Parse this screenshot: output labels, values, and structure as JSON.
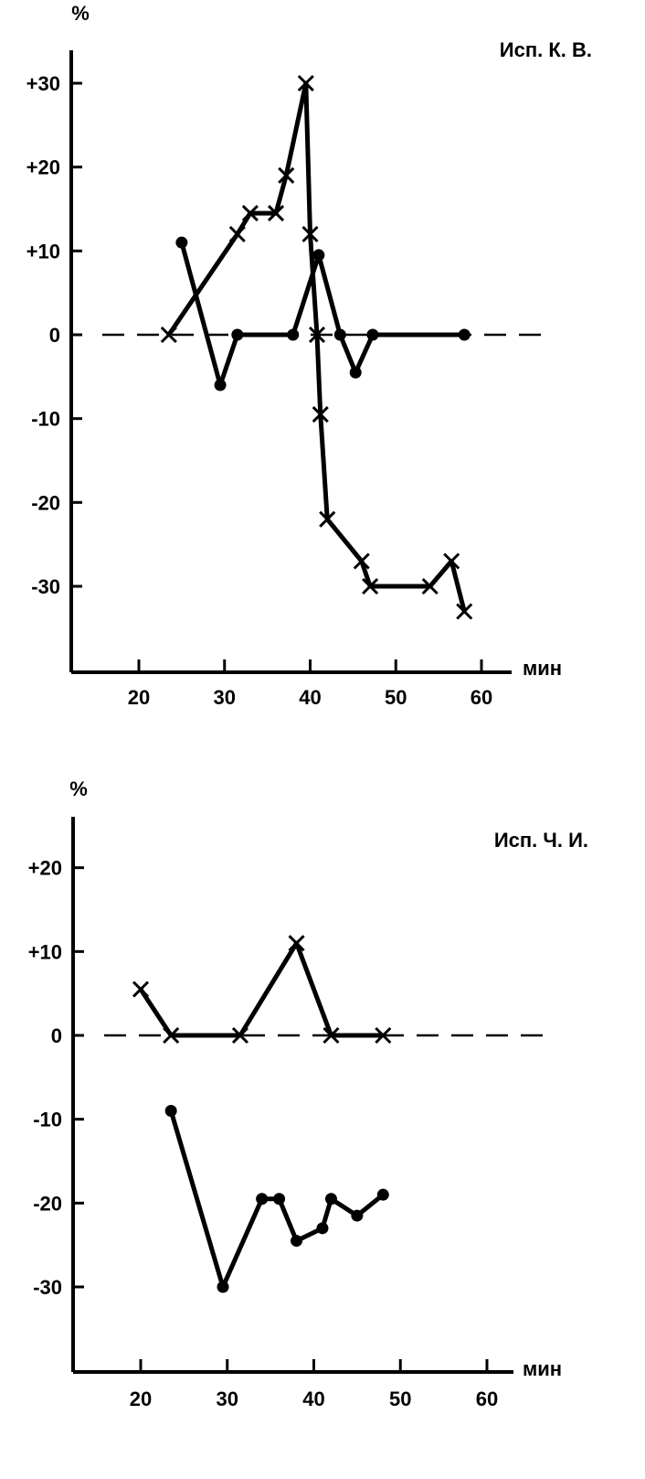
{
  "chart_data": [
    {
      "type": "line",
      "title": "Исп. К. В.",
      "ylabel": "%",
      "xlabel": "мин",
      "xlim": [
        12,
        62
      ],
      "ylim": [
        -40,
        33
      ],
      "x_ticks": [
        20,
        30,
        40,
        50,
        60
      ],
      "y_ticks": [
        30,
        20,
        10,
        0,
        -10,
        -20,
        -30
      ],
      "y_tick_labels": [
        "+30",
        "+20",
        "+10",
        "0",
        "-10",
        "-20",
        "-30"
      ],
      "zero_line": "dashed",
      "series": [
        {
          "marker": "x",
          "points": [
            [
              23.5,
              0
            ],
            [
              31.5,
              12
            ],
            [
              33,
              14.5
            ],
            [
              36,
              14.5
            ],
            [
              37.2,
              19
            ],
            [
              39.5,
              30
            ],
            [
              40,
              12
            ],
            [
              40.8,
              0
            ],
            [
              41.2,
              -9.5
            ],
            [
              42,
              -22
            ],
            [
              46,
              -27
            ],
            [
              47,
              -30
            ],
            [
              54,
              -30
            ],
            [
              56.5,
              -27
            ],
            [
              58,
              -33
            ]
          ]
        },
        {
          "marker": "dot",
          "points": [
            [
              25,
              11
            ],
            [
              29.5,
              -6
            ],
            [
              31.5,
              0
            ],
            [
              38,
              0
            ],
            [
              41,
              9.5
            ],
            [
              43.5,
              0
            ],
            [
              45.3,
              -4.5
            ],
            [
              47.3,
              0
            ],
            [
              58,
              0
            ]
          ]
        }
      ]
    },
    {
      "type": "line",
      "title": "Исп. Ч. И.",
      "ylabel": "%",
      "xlabel": "мин",
      "xlim": [
        12,
        62
      ],
      "ylim": [
        -41,
        27
      ],
      "x_ticks": [
        20,
        30,
        40,
        50,
        60
      ],
      "y_ticks": [
        20,
        10,
        0,
        -10,
        -20,
        -30
      ],
      "y_tick_labels": [
        "+20",
        "+10",
        "0",
        "-10",
        "-20",
        "-30"
      ],
      "zero_line": "dashed",
      "series": [
        {
          "marker": "x",
          "points": [
            [
              20,
              5.5
            ],
            [
              23.5,
              0
            ],
            [
              31.5,
              0
            ],
            [
              38,
              11
            ],
            [
              42,
              0
            ],
            [
              48,
              0
            ]
          ]
        },
        {
          "marker": "dot",
          "points": [
            [
              23.5,
              -9
            ],
            [
              29.5,
              -30
            ],
            [
              34,
              -19.5
            ],
            [
              36,
              -19.5
            ],
            [
              38,
              -24.5
            ],
            [
              41,
              -23
            ],
            [
              42,
              -19.5
            ],
            [
              45,
              -21.5
            ],
            [
              48,
              -19
            ]
          ]
        }
      ]
    }
  ]
}
